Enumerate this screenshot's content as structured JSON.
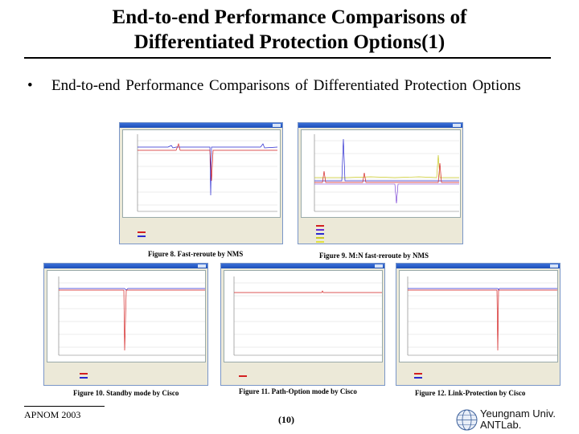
{
  "slide": {
    "title_line1": "End-to-end Performance Comparisons of",
    "title_line2": "Differentiated Protection Options(1)",
    "bullet": "End-to-end  Performance  Comparisons  of   Differentiated Protection Options",
    "footer_left": "APNOM 2003",
    "page_number": "(10)",
    "institution_line1": "Yeungnam Univ.",
    "institution_line2": "ANTLab."
  },
  "figures": [
    {
      "id": "fig8",
      "caption": "Figure 8. Fast-reroute by NMS",
      "legend_colors": [
        "#d32020",
        "#2a2ad0"
      ]
    },
    {
      "id": "fig9",
      "caption": "Figure 9. M:N fast-reroute by NMS",
      "legend_colors": [
        "#d32020",
        "#6a2ad0",
        "#2a2ad0",
        "#c8c820",
        "#e0e040"
      ]
    },
    {
      "id": "fig10",
      "caption": "Figure 10. Standby mode by Cisco",
      "legend_colors": [
        "#d32020",
        "#2a2ad0"
      ]
    },
    {
      "id": "fig11",
      "caption": "Figure 11. Path-Option mode by Cisco",
      "legend_colors": [
        "#d32020"
      ]
    },
    {
      "id": "fig12",
      "caption": "Figure 12. Link-Protection by Cisco",
      "legend_colors": [
        "#d32020",
        "#2a2ad0"
      ]
    }
  ],
  "colors": {
    "window_frame": "#ece9d8",
    "titlebar": "#1d4fb8",
    "plot_line_red": "#d32020",
    "plot_line_blue": "#2a2ad0"
  }
}
